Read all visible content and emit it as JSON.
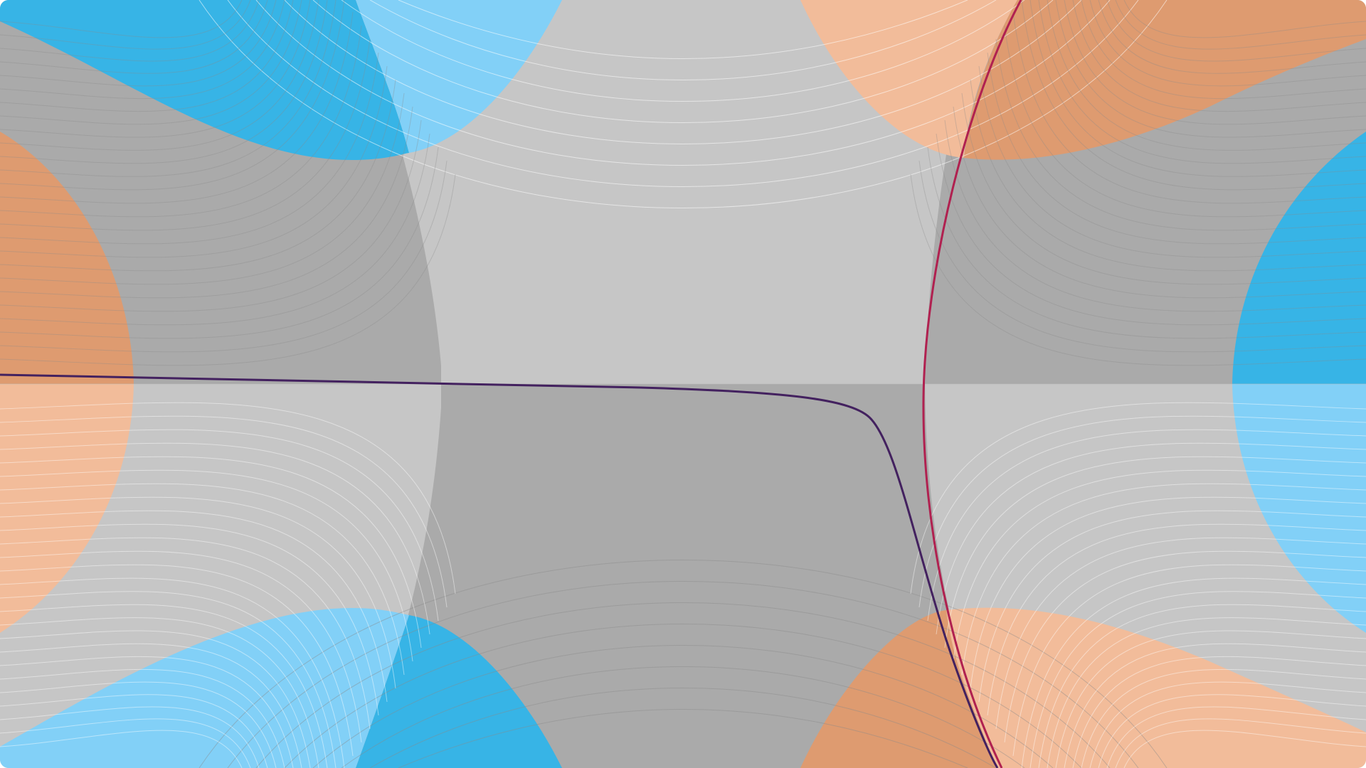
{
  "canvas": {
    "description_visible_text": "",
    "palette": {
      "grey_light": "#c6c6c6",
      "grey_dark": "#aaaaaa",
      "blue_light": "#82d0f7",
      "blue_dark": "#37b4e6",
      "orange_light": "#f2bc9a",
      "orange_dark": "#de9b70",
      "curve_purple": "#43215f",
      "curve_crimson": "#b02150",
      "contour_light": "#ffffff",
      "contour_dark": "#8a8a8a"
    }
  }
}
